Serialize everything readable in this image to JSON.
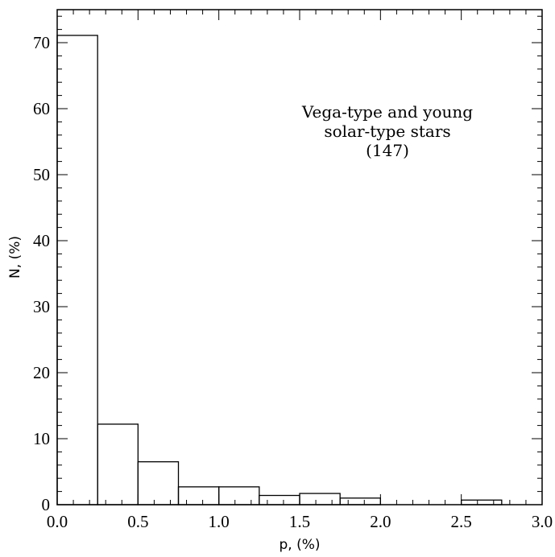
{
  "chart_data": {
    "type": "bar",
    "title": "",
    "xlabel": "p, (%)",
    "ylabel": "N, (%)",
    "xlim": [
      0,
      3.0
    ],
    "ylim": [
      0,
      75
    ],
    "grid": false,
    "x_ticks": [
      {
        "value": 0.0,
        "label": "0.0"
      },
      {
        "value": 0.5,
        "label": "0.5"
      },
      {
        "value": 1.0,
        "label": "1.0"
      },
      {
        "value": 1.5,
        "label": "1.5"
      },
      {
        "value": 2.0,
        "label": "2.0"
      },
      {
        "value": 2.5,
        "label": "2.5"
      },
      {
        "value": 3.0,
        "label": "3.0"
      }
    ],
    "y_ticks": [
      {
        "value": 0,
        "label": "0"
      },
      {
        "value": 10,
        "label": "10"
      },
      {
        "value": 20,
        "label": "20"
      },
      {
        "value": 30,
        "label": "30"
      },
      {
        "value": 40,
        "label": "40"
      },
      {
        "value": 50,
        "label": "50"
      },
      {
        "value": 60,
        "label": "60"
      },
      {
        "value": 70,
        "label": "70"
      }
    ],
    "bins": [
      {
        "x0": 0.0,
        "x1": 0.25,
        "value": 71.1
      },
      {
        "x0": 0.25,
        "x1": 0.5,
        "value": 12.2
      },
      {
        "x0": 0.5,
        "x1": 0.75,
        "value": 6.5
      },
      {
        "x0": 0.75,
        "x1": 1.0,
        "value": 2.7
      },
      {
        "x0": 1.0,
        "x1": 1.25,
        "value": 2.7
      },
      {
        "x0": 1.25,
        "x1": 1.5,
        "value": 1.4
      },
      {
        "x0": 1.5,
        "x1": 1.75,
        "value": 1.7
      },
      {
        "x0": 1.75,
        "x1": 2.0,
        "value": 1.0
      },
      {
        "x0": 2.5,
        "x1": 2.75,
        "value": 0.7
      }
    ],
    "annotation": [
      "Vega-type and young",
      "solar-type stars",
      "(147)"
    ]
  }
}
